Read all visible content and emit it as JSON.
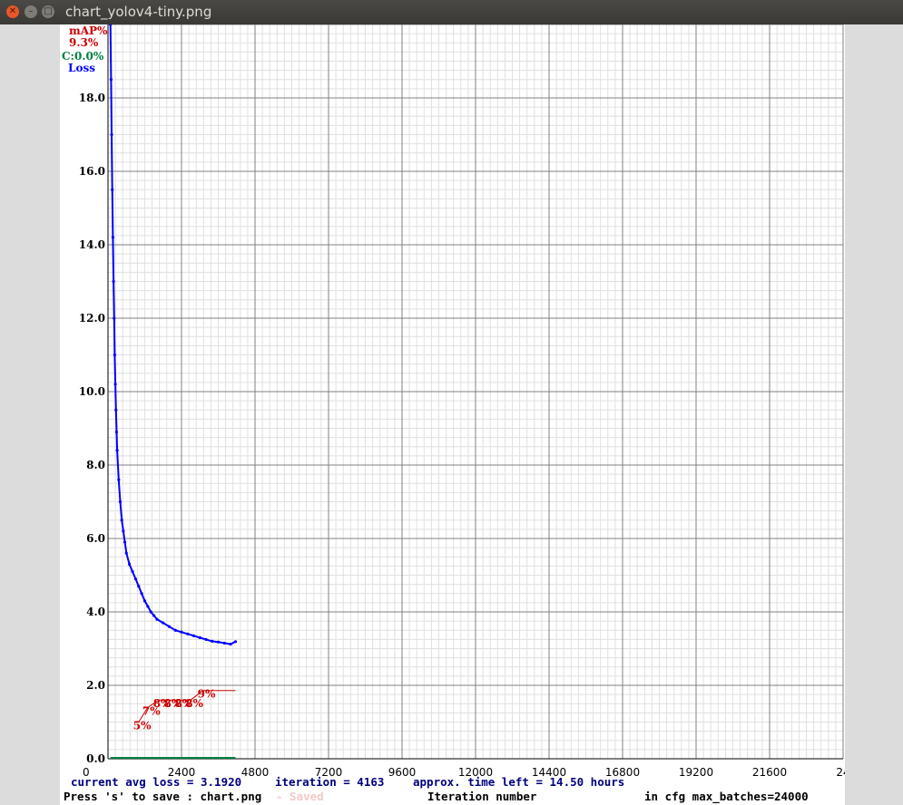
{
  "window": {
    "title": "chart_yolov4-tiny.png",
    "buttons": [
      "close",
      "minimize",
      "maximize"
    ]
  },
  "colors": {
    "loss": "#0000ff",
    "map": "#cc0000",
    "confidence": "#008040",
    "grid_major": "#808080",
    "grid_minor": "#e0e0e0",
    "text_dark": "#000080"
  },
  "legend": {
    "map_label": "mAP%",
    "map_value": "9.3%",
    "c_label": "C:0.0%",
    "loss_label": "Loss"
  },
  "footer": {
    "current_avg_loss": "current avg loss = 3.1920",
    "iteration": "iteration = 4163",
    "time_left": "approx. time left = 14.50 hours",
    "save_hint": "Press 's' to save : chart.png",
    "faded_label": "- Saved",
    "x_axis_title": "Iteration number",
    "max_batches": "in cfg max_batches=24000"
  },
  "chart_data": {
    "type": "line",
    "title": "",
    "xlabel": "Iteration number",
    "ylabel": "",
    "xlim": [
      0,
      24000
    ],
    "ylim": [
      0,
      20
    ],
    "x_ticks": [
      "0",
      "2400",
      "4800",
      "7200",
      "9600",
      "12000",
      "14400",
      "16800",
      "19200",
      "21600",
      "24"
    ],
    "y_ticks": [
      "0.0",
      "2.0",
      "4.0",
      "6.0",
      "8.0",
      "10.0",
      "12.0",
      "14.0",
      "16.0",
      "18.0"
    ],
    "grid": true,
    "series": [
      {
        "name": "Loss",
        "color": "#0000ff",
        "points": [
          [
            80,
            20.0
          ],
          [
            100,
            18.5
          ],
          [
            120,
            17.0
          ],
          [
            140,
            15.5
          ],
          [
            160,
            14.2
          ],
          [
            180,
            13.0
          ],
          [
            200,
            12.0
          ],
          [
            220,
            11.0
          ],
          [
            240,
            10.2
          ],
          [
            260,
            9.5
          ],
          [
            280,
            8.9
          ],
          [
            300,
            8.4
          ],
          [
            350,
            7.6
          ],
          [
            400,
            7.0
          ],
          [
            450,
            6.5
          ],
          [
            500,
            6.2
          ],
          [
            550,
            5.9
          ],
          [
            600,
            5.6
          ],
          [
            700,
            5.3
          ],
          [
            800,
            5.1
          ],
          [
            900,
            4.9
          ],
          [
            1000,
            4.7
          ],
          [
            1100,
            4.5
          ],
          [
            1200,
            4.3
          ],
          [
            1300,
            4.15
          ],
          [
            1400,
            4.0
          ],
          [
            1500,
            3.9
          ],
          [
            1600,
            3.8
          ],
          [
            1800,
            3.7
          ],
          [
            2000,
            3.6
          ],
          [
            2200,
            3.5
          ],
          [
            2400,
            3.45
          ],
          [
            2600,
            3.4
          ],
          [
            2800,
            3.35
          ],
          [
            3000,
            3.3
          ],
          [
            3200,
            3.25
          ],
          [
            3400,
            3.2
          ],
          [
            3600,
            3.18
          ],
          [
            3800,
            3.15
          ],
          [
            4000,
            3.12
          ],
          [
            4163,
            3.19
          ]
        ]
      },
      {
        "name": "mAP%",
        "color": "#cc0000",
        "points": [
          [
            1000,
            5.0
          ],
          [
            1300,
            7.0
          ],
          [
            1650,
            8.0
          ],
          [
            2000,
            8.0
          ],
          [
            2350,
            8.0
          ],
          [
            2700,
            8.0
          ],
          [
            3100,
            9.3
          ],
          [
            4163,
            9.3
          ]
        ],
        "labels": [
          "5%",
          "7%",
          "8%",
          "8%",
          "8%",
          "8%",
          "9%",
          ""
        ]
      },
      {
        "name": "C:0.0%",
        "color": "#008040",
        "points": [
          [
            80,
            0.0
          ],
          [
            4163,
            0.0
          ]
        ]
      }
    ]
  }
}
